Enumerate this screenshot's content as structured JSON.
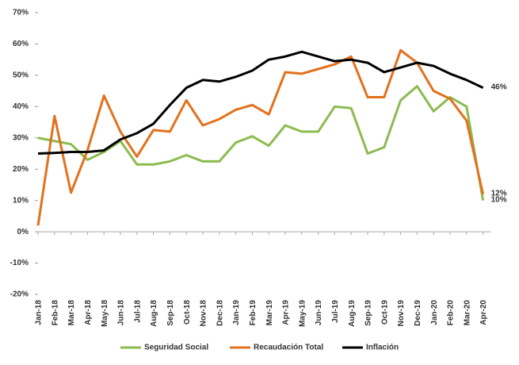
{
  "chart_data": {
    "type": "line",
    "categories": [
      "Jan-18",
      "Feb-18",
      "Mar-18",
      "Apr-18",
      "May-18",
      "Jun-18",
      "Jul-18",
      "Aug-18",
      "Sep-18",
      "Oct-18",
      "Nov-18",
      "Dec-18",
      "Jan-19",
      "Feb-19",
      "Mar-19",
      "Apr-19",
      "May-19",
      "Jun-19",
      "Jul-19",
      "Aug-19",
      "Sep-19",
      "Oct-19",
      "Nov-19",
      "Dec-19",
      "Jan-20",
      "Feb-20",
      "Mar-20",
      "Apr-20"
    ],
    "series": [
      {
        "name": "Seguridad Social",
        "color": "#8cbb4f",
        "values": [
          30,
          29,
          28,
          23,
          25.5,
          29,
          21.5,
          21.5,
          22.5,
          24.5,
          22.5,
          22.5,
          28.5,
          30.5,
          27.5,
          34,
          32,
          32,
          40,
          39.5,
          25,
          27,
          42,
          46.5,
          38.5,
          43,
          40,
          10
        ],
        "value_labels": [
          null,
          null,
          null,
          null,
          null,
          null,
          null,
          null,
          null,
          null,
          null,
          null,
          null,
          null,
          null,
          null,
          null,
          null,
          null,
          null,
          null,
          null,
          null,
          null,
          null,
          null,
          null,
          "10%"
        ]
      },
      {
        "name": "Recaudación Total",
        "color": "#e3711d",
        "values": [
          2,
          37,
          12.5,
          26,
          43.5,
          32,
          24,
          32.5,
          32,
          42,
          34,
          36,
          39,
          40.5,
          37.5,
          51,
          50.5,
          52,
          53.5,
          56,
          43,
          43,
          58,
          54,
          45,
          42.5,
          35.5,
          12
        ],
        "value_labels": [
          null,
          null,
          null,
          null,
          null,
          null,
          null,
          null,
          null,
          null,
          null,
          null,
          null,
          null,
          null,
          null,
          null,
          null,
          null,
          null,
          null,
          null,
          null,
          null,
          null,
          null,
          null,
          "12%"
        ]
      },
      {
        "name": "Inflación",
        "color": "#000000",
        "values": [
          25,
          25.2,
          25.5,
          25.5,
          26,
          29.5,
          31.5,
          34.5,
          40.5,
          46,
          48.5,
          48,
          49.5,
          51.5,
          55,
          56,
          57.5,
          56,
          54.5,
          55,
          54,
          51,
          52.5,
          54,
          53,
          50.5,
          48.5,
          46
        ],
        "value_labels": [
          null,
          null,
          null,
          null,
          null,
          null,
          null,
          null,
          null,
          null,
          null,
          null,
          null,
          null,
          null,
          null,
          null,
          null,
          null,
          null,
          null,
          null,
          null,
          null,
          null,
          null,
          null,
          "46%"
        ]
      }
    ],
    "ylim": [
      -20,
      70
    ],
    "yticks": [
      {
        "value": -20,
        "label": "-20%"
      },
      {
        "value": -10,
        "label": "-10%"
      },
      {
        "value": 0,
        "label": "0%"
      },
      {
        "value": 10,
        "label": "10%"
      },
      {
        "value": 20,
        "label": "20%"
      },
      {
        "value": 30,
        "label": "30%"
      },
      {
        "value": 40,
        "label": "40%"
      },
      {
        "value": 50,
        "label": "50%"
      },
      {
        "value": 60,
        "label": "60%"
      },
      {
        "value": 70,
        "label": "70%"
      }
    ],
    "grid": false,
    "legend": "bottom"
  }
}
